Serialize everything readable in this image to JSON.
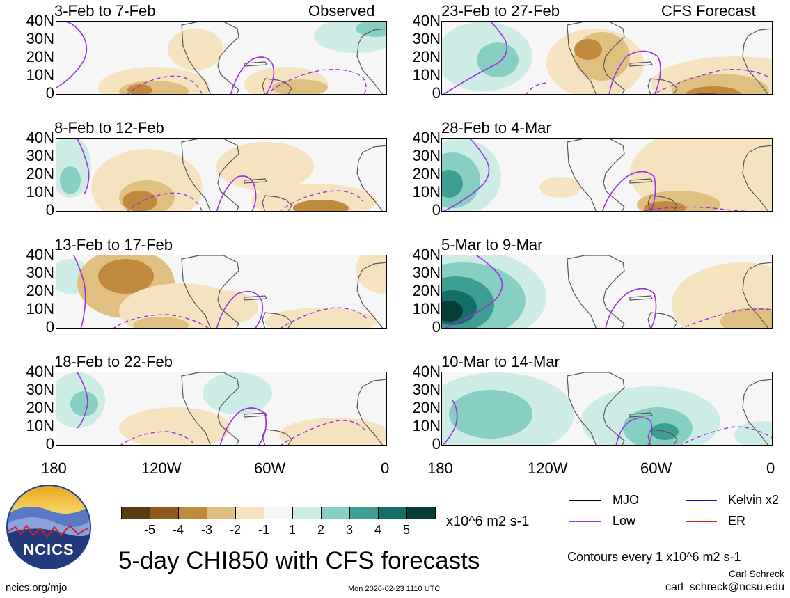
{
  "panels_left": [
    {
      "title": "3-Feb to 7-Feb",
      "tag": "Observed"
    },
    {
      "title": "8-Feb to 12-Feb",
      "tag": ""
    },
    {
      "title": "13-Feb to 17-Feb",
      "tag": ""
    },
    {
      "title": "18-Feb to 22-Feb",
      "tag": ""
    }
  ],
  "panels_right": [
    {
      "title": "23-Feb to 27-Feb",
      "tag": "CFS Forecast"
    },
    {
      "title": "28-Feb to 4-Mar",
      "tag": ""
    },
    {
      "title": "5-Mar to 9-Mar",
      "tag": ""
    },
    {
      "title": "10-Mar to 14-Mar",
      "tag": ""
    }
  ],
  "lat_labels": [
    "40N",
    "30N",
    "20N",
    "10N",
    "0"
  ],
  "lon_labels": [
    "180",
    "120W",
    "60W",
    "0"
  ],
  "colorbar": {
    "colors": [
      "#5a3c10",
      "#8c5a1c",
      "#bf8a3e",
      "#e0c080",
      "#f5e3c0",
      "#f6f6f6",
      "#cdece6",
      "#86cfc2",
      "#3f9e93",
      "#146f68",
      "#063d36"
    ],
    "labels": [
      "-5",
      "-4",
      "-3",
      "-2",
      "-1",
      "1",
      "2",
      "3",
      "4",
      "5"
    ],
    "units": "x10^6 m2 s-1"
  },
  "legend": [
    {
      "label": "MJO",
      "color": "#000000"
    },
    {
      "label": "Kelvin x2",
      "color": "#1010d0"
    },
    {
      "label": "Low",
      "color": "#9a30e0"
    },
    {
      "label": "ER",
      "color": "#e02020"
    }
  ],
  "logo_text": "NCICS",
  "main_title": "5-day CHI850 with CFS forecasts",
  "contour_note": "Contours every 1 x10^6 m2 s-1",
  "author": "Carl Schreck",
  "email": "carl_schreck@ncsu.edu",
  "website": "ncics.org/mjo",
  "timestamp": "Mon 2026-02-23 1110 UTC"
}
